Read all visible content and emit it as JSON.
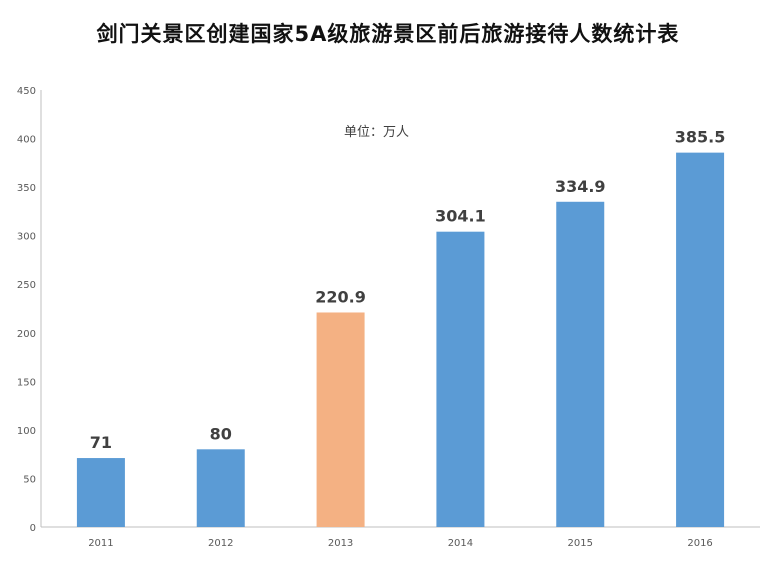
{
  "chart_data": {
    "type": "bar",
    "title": "剑门关景区创建国家5A级旅游景区前后旅游接待人数统计表",
    "annotation": "单位：万人",
    "categories": [
      "2011",
      "2012",
      "2013",
      "2014",
      "2015",
      "2016"
    ],
    "values": [
      71,
      80,
      220.9,
      304.1,
      334.9,
      385.5
    ],
    "value_labels": [
      "71",
      "80",
      "220.9",
      "304.1",
      "334.9",
      "385.5"
    ],
    "bar_colors": [
      "#5b9bd5",
      "#5b9bd5",
      "#f4b183",
      "#5b9bd5",
      "#5b9bd5",
      "#5b9bd5"
    ],
    "y_ticks": [
      0,
      50,
      100,
      150,
      200,
      250,
      300,
      350,
      400,
      450
    ],
    "ylim": [
      0,
      450
    ],
    "xlabel": "",
    "ylabel": "",
    "grid": false,
    "legend": "none"
  }
}
